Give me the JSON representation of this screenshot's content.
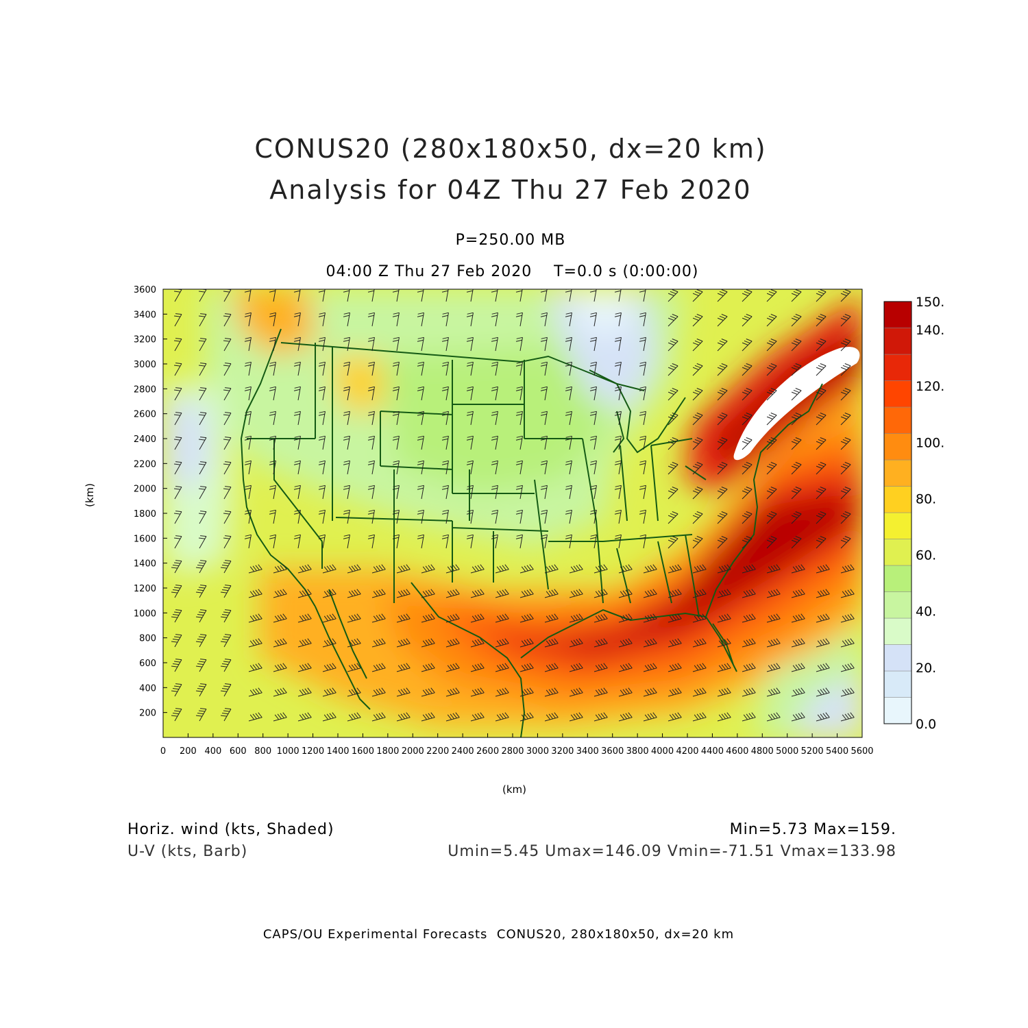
{
  "header": {
    "title_line1": "CONUS20 (280x180x50, dx=20 km)",
    "title_line2": "Analysis for 04Z Thu 27 Feb 2020",
    "level": "P=250.00 MB",
    "time": "04:00 Z Thu 27 Feb 2020    T=0.0 s (0:00:00)"
  },
  "axes": {
    "x_label": "(km)",
    "y_label": "(km)",
    "x_ticks": [
      "0",
      "200",
      "400",
      "600",
      "800",
      "1000",
      "1200",
      "1400",
      "1600",
      "1800",
      "2000",
      "2200",
      "2400",
      "2600",
      "2800",
      "3000",
      "3200",
      "3400",
      "3600",
      "3800",
      "4000",
      "4200",
      "4400",
      "4600",
      "4800",
      "5000",
      "5200",
      "5400",
      "5600"
    ],
    "y_ticks": [
      "200",
      "400",
      "600",
      "800",
      "1000",
      "1200",
      "1400",
      "1600",
      "1800",
      "2000",
      "2200",
      "2400",
      "2600",
      "2800",
      "3000",
      "3200",
      "3400",
      "3600"
    ],
    "x_range": [
      0,
      5600
    ],
    "y_range": [
      0,
      3600
    ]
  },
  "colorbar": {
    "labels": [
      "0.0",
      "20.",
      "40.",
      "60.",
      "80.",
      "100.",
      "120.",
      "140.",
      "150."
    ],
    "colors": [
      "#e8f6fc",
      "#d8eaf8",
      "#d5e2f7",
      "#d9fbc8",
      "#c8f5a0",
      "#b8f07a",
      "#e0f050",
      "#f4f030",
      "#ffd020",
      "#ffb020",
      "#ff8c10",
      "#ff6808",
      "#ff4500",
      "#e82808",
      "#d01808",
      "#b80000"
    ]
  },
  "footer_info": {
    "field_line1": "Horiz. wind (kts, Shaded)",
    "field_line2": "U-V (kts, Barb)",
    "stats_line1": "Min=5.73 Max=159.",
    "stats_line2": "Umin=5.45 Umax=146.09 Vmin=-71.51 Vmax=133.98"
  },
  "credits": "CAPS/OU Experimental Forecasts  CONUS20, 280x180x50, dx=20 km"
}
